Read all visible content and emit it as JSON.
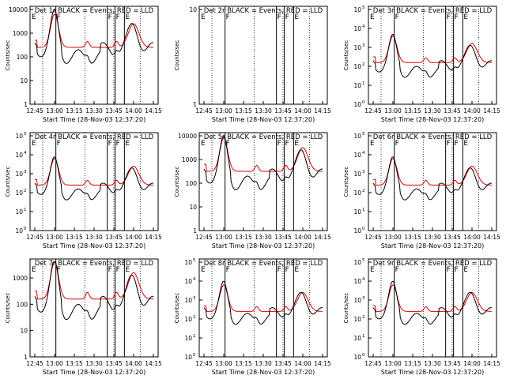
{
  "panels": [
    {
      "title": "Det 1r BLACK = Events, RED = LLD",
      "y_ticks": [
        "1",
        "10",
        "100",
        "1000",
        "10000"
      ],
      "y_exp": false,
      "decades": 4,
      "black_level": 2.3,
      "red_level": 2.4,
      "dead": true,
      "xlabel": "Start Time (28-Nov-03 12:37:20)"
    },
    {
      "title": "Det 2r BLACK = Events, RED = LLD",
      "y_ticks": [
        "1",
        "10"
      ],
      "y_exp": false,
      "decades": 1,
      "black_level": null,
      "red_level": null,
      "dead": false,
      "xlabel": "Start Time (28-Nov-03 12:37:20)"
    },
    {
      "title": "Det 3r BLACK = Events, RED = LLD",
      "y_ticks": [
        "0",
        "1",
        "2",
        "3",
        "4",
        "5"
      ],
      "y_exp": true,
      "decades": 5,
      "black_level": 2.0,
      "red_level": 2.2,
      "dead": true,
      "xlabel": "Start Time (28-Nov-03 12:37:20)"
    },
    {
      "title": "Det 4r BLACK = Events, RED = LLD",
      "y_ticks": [
        "0",
        "1",
        "2",
        "3",
        "4",
        "5"
      ],
      "y_exp": true,
      "decades": 5,
      "black_level": 2.2,
      "red_level": 2.4,
      "dead": true,
      "xlabel": "Start Time (28-Nov-03 12:37:20)"
    },
    {
      "title": "Det 5r BLACK = Events, RED = LLD",
      "y_ticks": [
        "1",
        "10",
        "100",
        "1000",
        "10000"
      ],
      "y_exp": false,
      "decades": 4,
      "black_level": 2.3,
      "red_level": 2.5,
      "dead": true,
      "xlabel": "Start Time (28-Nov-03 12:37:20)"
    },
    {
      "title": "Det 6r BLACK = Events, RED = LLD",
      "y_ticks": [
        "0",
        "1",
        "2",
        "3",
        "4",
        "5"
      ],
      "y_exp": true,
      "decades": 5,
      "black_level": 2.2,
      "red_level": 2.4,
      "dead": true,
      "xlabel": "Start Time (28-Nov-03 12:37:20)"
    },
    {
      "title": "Det 7r BLACK = Events, RED = LLD",
      "y_ticks": [
        "1",
        "10",
        "100",
        "1000"
      ],
      "y_exp": false,
      "decades": 3.6,
      "black_level": 2.0,
      "red_level": 2.2,
      "dead": true,
      "xlabel": "Start Time (28-Nov-03 12:37:20)"
    },
    {
      "title": "Det 8r BLACK = Events, RED = LLD",
      "y_ticks": [
        "0",
        "1",
        "2",
        "3",
        "4",
        "5"
      ],
      "y_exp": true,
      "decades": 5,
      "black_level": 2.3,
      "red_level": 2.4,
      "dead": true,
      "xlabel": "Start Time (28-Nov-03 12:37:20)"
    },
    {
      "title": "Det 9r BLACK = Events, RED = LLD",
      "y_ticks": [
        "0",
        "1",
        "2",
        "3",
        "4",
        "5"
      ],
      "y_exp": true,
      "decades": 5,
      "black_level": 2.3,
      "red_level": 2.4,
      "dead": true,
      "xlabel": "Start Time (28-Nov-03 12:37:20)"
    }
  ],
  "chart_data": {
    "type": "line",
    "x_ticks": [
      "12:45",
      "13:00",
      "13:15",
      "13:30",
      "13:45",
      "14:00",
      "14:15"
    ],
    "x_range_minutes": [
      0,
      90
    ],
    "solid_markers_minutes": [
      16,
      55,
      61,
      68
    ],
    "dotted_markers_minutes": [
      6,
      38,
      60,
      80
    ],
    "flag_letters": [
      "F",
      "F",
      "F",
      "E"
    ],
    "series": [
      {
        "name": "BLACK = Events",
        "color": "#000000"
      },
      {
        "name": "RED = LLD",
        "color": "#dd0000"
      }
    ],
    "flare_peaks_minutes": [
      15,
      75
    ],
    "minor_bumps_minutes": [
      40,
      62
    ]
  }
}
